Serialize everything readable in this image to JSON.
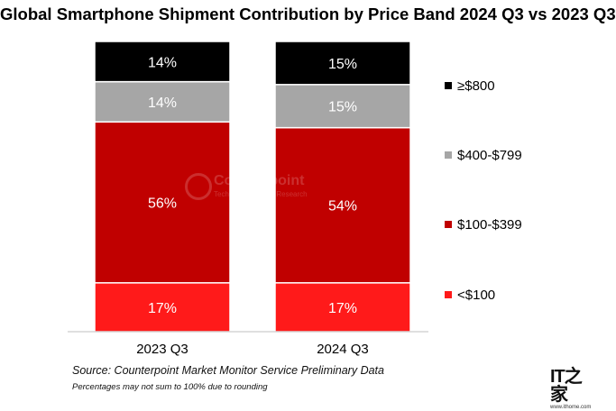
{
  "chart_data": {
    "type": "bar",
    "stacked": true,
    "title": "Global Smartphone Shipment Contribution by Price Band 2024 Q3 vs 2023 Q3",
    "categories": [
      "2023 Q3",
      "2024 Q3"
    ],
    "series": [
      {
        "name": "<$100",
        "values": [
          17,
          17
        ],
        "labels": [
          "17%",
          "17%"
        ],
        "color": "#ff1a1a",
        "label_color": "#ffffff"
      },
      {
        "name": "$100-$399",
        "values": [
          56,
          54
        ],
        "labels": [
          "56%",
          "54%"
        ],
        "color": "#c00000",
        "label_color": "#ffffff"
      },
      {
        "name": "$400-$799",
        "values": [
          14,
          15
        ],
        "labels": [
          "14%",
          "15%"
        ],
        "color": "#a6a6a6",
        "label_color": "#ffffff"
      },
      {
        "name": "≥$800",
        "values": [
          14,
          15
        ],
        "labels": [
          "14%",
          "15%"
        ],
        "color": "#000000",
        "label_color": "#ffffff"
      }
    ],
    "legend_position": "right",
    "legend_order": [
      "≥$800",
      "$400-$799",
      "$100-$399",
      "<$100"
    ],
    "grid": false,
    "xlabel": "",
    "ylabel": ""
  },
  "footer": {
    "source": "Source: Counterpoint Market Monitor Service Preliminary Data",
    "note": "Percentages may not sum to 100% due to rounding"
  },
  "watermark": {
    "text": "Counterpoint",
    "sub": "Technology Market Research"
  },
  "brand": {
    "logo": "IT之家",
    "url": "www.ithome.com"
  }
}
